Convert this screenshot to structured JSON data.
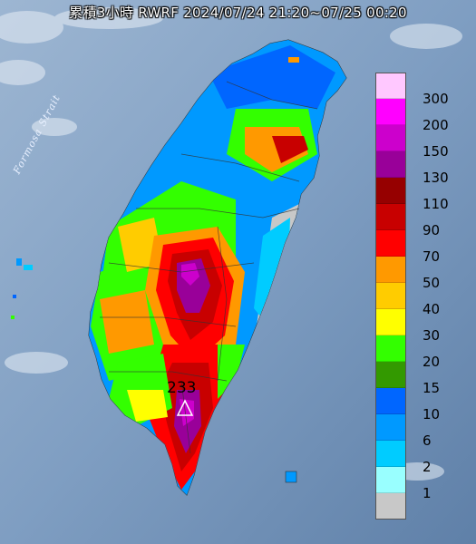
{
  "title": "累積3小時 RWRF 2024/07/24 21:20~07/25 00:20",
  "strait_label": "Formosa Strait",
  "max_value": "233",
  "legend": [
    {
      "label": "300",
      "color": "#ffc8ff"
    },
    {
      "label": "200",
      "color": "#ff00ff"
    },
    {
      "label": "150",
      "color": "#cc00cc"
    },
    {
      "label": "130",
      "color": "#990099"
    },
    {
      "label": "110",
      "color": "#960000"
    },
    {
      "label": "90",
      "color": "#c80000"
    },
    {
      "label": "70",
      "color": "#ff0000"
    },
    {
      "label": "50",
      "color": "#ff9900"
    },
    {
      "label": "40",
      "color": "#ffcc00"
    },
    {
      "label": "30",
      "color": "#ffff00"
    },
    {
      "label": "20",
      "color": "#33ff00"
    },
    {
      "label": "15",
      "color": "#339900"
    },
    {
      "label": "10",
      "color": "#0066ff"
    },
    {
      "label": "6",
      "color": "#0099ff"
    },
    {
      "label": "2",
      "color": "#00ccff"
    },
    {
      "label": "1",
      "color": "#99ffff"
    },
    {
      "label": "",
      "color": "#c8c8c8"
    }
  ],
  "colors": {
    "sea": "#6f8fb4",
    "land_dry": "#c8c8c8"
  }
}
